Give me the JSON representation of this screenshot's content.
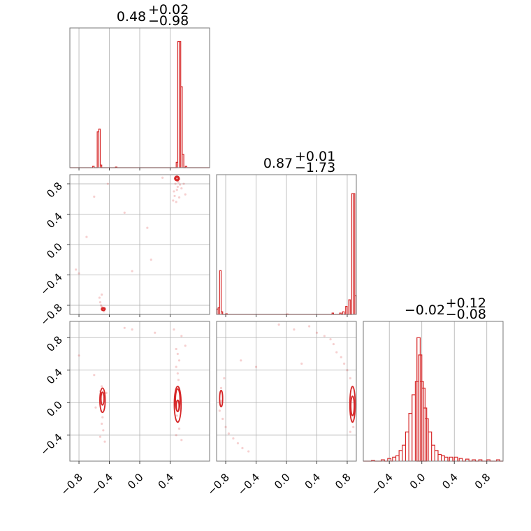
{
  "chart_data": {
    "type": "corner",
    "color": "#d62728",
    "grid": true,
    "titles": [
      {
        "value": "0.48",
        "plus": "+0.02",
        "minus": "−0.98"
      },
      {
        "value": "0.87",
        "plus": "+0.01",
        "minus": "−1.73"
      },
      {
        "value": "−0.02",
        "plus": "+0.12",
        "minus": "−0.08"
      }
    ],
    "ranges": [
      [
        -0.92,
        0.92
      ],
      [
        -0.92,
        0.92
      ],
      [
        -0.72,
        1.0
      ]
    ],
    "x_ticks": [
      [
        {
          "v": -0.8,
          "label": "−0.8"
        },
        {
          "v": -0.4,
          "label": "−0.4"
        },
        {
          "v": 0.0,
          "label": "0.0"
        },
        {
          "v": 0.4,
          "label": "0.4"
        }
      ],
      [
        {
          "v": -0.8,
          "label": "−0.8"
        },
        {
          "v": -0.4,
          "label": "−0.4"
        },
        {
          "v": 0.0,
          "label": "0.0"
        },
        {
          "v": 0.4,
          "label": "0.4"
        },
        {
          "v": 0.8,
          "label": "0.8"
        }
      ],
      [
        {
          "v": -0.4,
          "label": "−0.4"
        },
        {
          "v": 0.0,
          "label": "0.0"
        },
        {
          "v": 0.4,
          "label": "0.4"
        },
        {
          "v": 0.8,
          "label": "0.8"
        }
      ]
    ],
    "y_ticks": [
      null,
      [
        {
          "v": -0.8,
          "label": "−0.8"
        },
        {
          "v": -0.4,
          "label": "−0.4"
        },
        {
          "v": 0.0,
          "label": "0.0"
        },
        {
          "v": 0.4,
          "label": "0.4"
        },
        {
          "v": 0.8,
          "label": "0.8"
        }
      ],
      [
        {
          "v": -0.4,
          "label": "−0.4"
        },
        {
          "v": 0.0,
          "label": "0.0"
        },
        {
          "v": 0.4,
          "label": "0.4"
        },
        {
          "v": 0.8,
          "label": "0.8"
        }
      ]
    ],
    "histograms": [
      {
        "parameter": 0,
        "ymax": 1.0,
        "bins": [
          [
            -0.62,
            0.01
          ],
          [
            -0.56,
            0.27
          ],
          [
            -0.54,
            0.29
          ],
          [
            -0.52,
            0.02
          ],
          [
            -0.32,
            0.005
          ],
          [
            0.48,
            0.04
          ],
          [
            0.5,
            0.95
          ],
          [
            0.52,
            0.95
          ],
          [
            0.54,
            0.61
          ],
          [
            0.56,
            0.1
          ],
          [
            0.6,
            0.01
          ]
        ],
        "bin_width": 0.02
      },
      {
        "parameter": 1,
        "ymax": 1.0,
        "bins": [
          [
            -0.92,
            0.04
          ],
          [
            -0.9,
            0.05
          ],
          [
            -0.88,
            0.33
          ],
          [
            -0.86,
            0.02
          ],
          [
            -0.8,
            0.005
          ],
          [
            0.0,
            0.003
          ],
          [
            0.6,
            0.01
          ],
          [
            0.7,
            0.01
          ],
          [
            0.74,
            0.02
          ],
          [
            0.78,
            0.06
          ],
          [
            0.82,
            0.11
          ],
          [
            0.86,
            0.91
          ],
          [
            0.88,
            0.91
          ],
          [
            0.9,
            0.14
          ]
        ],
        "bin_width": 0.02
      },
      {
        "parameter": 2,
        "ymax": 1.0,
        "bins": [
          [
            -0.62,
            0.005
          ],
          [
            -0.5,
            0.01
          ],
          [
            -0.42,
            0.02
          ],
          [
            -0.36,
            0.03
          ],
          [
            -0.32,
            0.04
          ],
          [
            -0.28,
            0.08
          ],
          [
            -0.24,
            0.12
          ],
          [
            -0.2,
            0.22
          ],
          [
            -0.16,
            0.36
          ],
          [
            -0.12,
            0.5
          ],
          [
            -0.08,
            0.6
          ],
          [
            -0.06,
            0.93
          ],
          [
            -0.04,
            0.8
          ],
          [
            -0.02,
            0.6
          ],
          [
            0.0,
            0.55
          ],
          [
            0.02,
            0.4
          ],
          [
            0.04,
            0.32
          ],
          [
            0.08,
            0.22
          ],
          [
            0.12,
            0.12
          ],
          [
            0.16,
            0.08
          ],
          [
            0.2,
            0.05
          ],
          [
            0.24,
            0.04
          ],
          [
            0.28,
            0.03
          ],
          [
            0.34,
            0.03
          ],
          [
            0.4,
            0.03
          ],
          [
            0.46,
            0.02
          ],
          [
            0.54,
            0.015
          ],
          [
            0.62,
            0.01
          ],
          [
            0.7,
            0.01
          ],
          [
            0.8,
            0.01
          ],
          [
            0.92,
            0.01
          ]
        ],
        "bin_width": 0.04
      }
    ],
    "scatter": [
      {
        "x_param": 0,
        "y_param": 1,
        "points": [
          [
            0.48,
            0.88
          ],
          [
            0.49,
            0.86
          ],
          [
            0.5,
            0.84
          ],
          [
            0.51,
            0.82
          ],
          [
            0.52,
            0.86
          ],
          [
            0.53,
            0.79
          ],
          [
            0.47,
            0.8
          ],
          [
            0.5,
            0.76
          ],
          [
            0.49,
            0.72
          ],
          [
            0.45,
            0.7
          ],
          [
            0.46,
            0.64
          ],
          [
            0.52,
            0.62
          ],
          [
            0.48,
            0.56
          ],
          [
            0.55,
            0.74
          ],
          [
            0.58,
            0.8
          ],
          [
            0.6,
            0.66
          ],
          [
            0.44,
            0.58
          ],
          [
            -0.48,
            -0.86
          ],
          [
            -0.49,
            -0.84
          ],
          [
            -0.5,
            -0.82
          ],
          [
            -0.51,
            -0.8
          ],
          [
            -0.52,
            -0.76
          ],
          [
            -0.53,
            -0.7
          ],
          [
            -0.5,
            -0.66
          ],
          [
            -0.47,
            -0.88
          ],
          [
            -0.46,
            -0.84
          ],
          [
            -0.84,
            -0.33
          ],
          [
            -0.8,
            -0.38
          ],
          [
            -0.6,
            0.63
          ],
          [
            -0.42,
            0.8
          ],
          [
            -0.2,
            0.42
          ],
          [
            0.1,
            0.22
          ],
          [
            -0.1,
            -0.35
          ],
          [
            0.15,
            -0.2
          ],
          [
            -0.7,
            0.1
          ],
          [
            0.3,
            0.88
          ]
        ],
        "contours": [
          {
            "cx": 0.49,
            "cy": 0.87,
            "rx": 0.03,
            "ry": 0.03
          },
          {
            "cx": 0.49,
            "cy": 0.87,
            "rx": 0.018,
            "ry": 0.018
          },
          {
            "cx": -0.48,
            "cy": -0.85,
            "rx": 0.025,
            "ry": 0.02
          },
          {
            "cx": -0.48,
            "cy": -0.85,
            "rx": 0.015,
            "ry": 0.012
          }
        ]
      },
      {
        "x_param": 0,
        "y_param": 2,
        "points": [
          [
            -0.5,
            0.2
          ],
          [
            -0.52,
            0.14
          ],
          [
            -0.48,
            0.1
          ],
          [
            -0.51,
            -0.1
          ],
          [
            -0.49,
            -0.18
          ],
          [
            -0.5,
            -0.26
          ],
          [
            -0.48,
            -0.34
          ],
          [
            -0.52,
            -0.42
          ],
          [
            -0.46,
            -0.48
          ],
          [
            -0.44,
            0.12
          ],
          [
            0.48,
            0.66
          ],
          [
            0.5,
            0.6
          ],
          [
            0.52,
            0.52
          ],
          [
            0.48,
            0.44
          ],
          [
            0.5,
            0.36
          ],
          [
            0.51,
            0.28
          ],
          [
            0.49,
            -0.16
          ],
          [
            0.5,
            -0.24
          ],
          [
            0.52,
            -0.32
          ],
          [
            0.48,
            -0.4
          ],
          [
            0.55,
            -0.46
          ],
          [
            0.45,
            0.9
          ],
          [
            0.55,
            0.82
          ],
          [
            0.6,
            0.7
          ],
          [
            -0.8,
            0.58
          ],
          [
            -0.6,
            0.34
          ],
          [
            -0.1,
            0.9
          ],
          [
            0.2,
            0.86
          ],
          [
            -0.2,
            0.92
          ],
          [
            -0.58,
            -0.06
          ]
        ],
        "contours": [
          {
            "cx": -0.49,
            "cy": 0.03,
            "rx": 0.035,
            "ry": 0.15
          },
          {
            "cx": -0.49,
            "cy": 0.05,
            "rx": 0.02,
            "ry": 0.08
          },
          {
            "cx": 0.5,
            "cy": -0.02,
            "rx": 0.045,
            "ry": 0.22
          },
          {
            "cx": 0.5,
            "cy": 0.03,
            "rx": 0.03,
            "ry": 0.14
          },
          {
            "cx": 0.5,
            "cy": -0.04,
            "rx": 0.018,
            "ry": 0.07
          }
        ]
      },
      {
        "x_param": 1,
        "y_param": 2,
        "points": [
          [
            0.86,
            0.18
          ],
          [
            0.84,
            0.3
          ],
          [
            0.8,
            0.4
          ],
          [
            0.76,
            0.48
          ],
          [
            0.72,
            0.56
          ],
          [
            0.66,
            0.62
          ],
          [
            0.62,
            0.72
          ],
          [
            0.58,
            0.78
          ],
          [
            0.5,
            0.82
          ],
          [
            0.4,
            0.86
          ],
          [
            0.3,
            0.94
          ],
          [
            0.86,
            -0.22
          ],
          [
            0.88,
            -0.3
          ],
          [
            0.84,
            -0.36
          ],
          [
            -0.86,
            0.18
          ],
          [
            -0.88,
            -0.1
          ],
          [
            -0.84,
            -0.2
          ],
          [
            -0.8,
            -0.3
          ],
          [
            -0.76,
            -0.38
          ],
          [
            -0.7,
            -0.44
          ],
          [
            -0.64,
            -0.5
          ],
          [
            -0.58,
            -0.56
          ],
          [
            -0.5,
            -0.6
          ],
          [
            -0.82,
            0.3
          ],
          [
            -0.6,
            0.52
          ],
          [
            -0.4,
            0.44
          ],
          [
            0.1,
            0.9
          ],
          [
            -0.1,
            0.96
          ],
          [
            0.2,
            0.48
          ],
          [
            -0.86,
            0.02
          ]
        ],
        "contours": [
          {
            "cx": -0.86,
            "cy": 0.05,
            "rx": 0.02,
            "ry": 0.1
          },
          {
            "cx": 0.87,
            "cy": -0.02,
            "rx": 0.035,
            "ry": 0.22
          },
          {
            "cx": 0.87,
            "cy": -0.04,
            "rx": 0.022,
            "ry": 0.12
          }
        ]
      }
    ]
  }
}
